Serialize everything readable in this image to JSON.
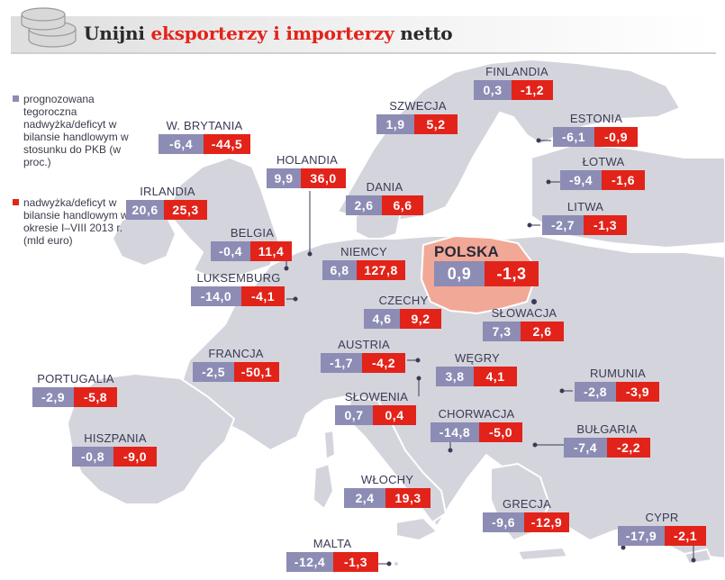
{
  "header": {
    "title_part1": "Unijni ",
    "title_accent": "eksporterzy i importerzy",
    "title_part2": " netto"
  },
  "legend": {
    "item1": "prognozowana tegoroczna nadwyżka/deficyt w bilansie handlowym w stosunku do PKB (w proc.)",
    "item2": "nadwyżka/deficyt w bilansie handlowym w okresie I–VIII 2013 r. (mld euro)"
  },
  "colors": {
    "gdp_share": "#8c8cb4",
    "trade_balance": "#e2231a",
    "poland_highlight": "#f2a896",
    "land": "#d4d4dc",
    "sea": "#ffffff"
  },
  "countries": [
    {
      "name": "FINLANDIA",
      "gdp": "0,3",
      "eur": "-1,2"
    },
    {
      "name": "SZWECJA",
      "gdp": "1,9",
      "eur": "5,2"
    },
    {
      "name": "ESTONIA",
      "gdp": "-6,1",
      "eur": "-0,9"
    },
    {
      "name": "W. BRYTANIA",
      "gdp": "-6,4",
      "eur": "-44,5"
    },
    {
      "name": "HOLANDIA",
      "gdp": "9,9",
      "eur": "36,0"
    },
    {
      "name": "ŁOTWA",
      "gdp": "-9,4",
      "eur": "-1,6"
    },
    {
      "name": "IRLANDIA",
      "gdp": "20,6",
      "eur": "25,3"
    },
    {
      "name": "DANIA",
      "gdp": "2,6",
      "eur": "6,6"
    },
    {
      "name": "LITWA",
      "gdp": "-2,7",
      "eur": "-1,3"
    },
    {
      "name": "BELGIA",
      "gdp": "-0,4",
      "eur": "11,4"
    },
    {
      "name": "NIEMCY",
      "gdp": "6,8",
      "eur": "127,8"
    },
    {
      "name": "POLSKA",
      "gdp": "0,9",
      "eur": "-1,3"
    },
    {
      "name": "LUKSEMBURG",
      "gdp": "-14,0",
      "eur": "-4,1"
    },
    {
      "name": "CZECHY",
      "gdp": "4,6",
      "eur": "9,2"
    },
    {
      "name": "SŁOWACJA",
      "gdp": "7,3",
      "eur": "2,6"
    },
    {
      "name": "FRANCJA",
      "gdp": "-2,5",
      "eur": "-50,1"
    },
    {
      "name": "AUSTRIA",
      "gdp": "-1,7",
      "eur": "-4,2"
    },
    {
      "name": "WĘGRY",
      "gdp": "3,8",
      "eur": "4,1"
    },
    {
      "name": "PORTUGALIA",
      "gdp": "-2,9",
      "eur": "-5,8"
    },
    {
      "name": "RUMUNIA",
      "gdp": "-2,8",
      "eur": "-3,9"
    },
    {
      "name": "SŁOWENIA",
      "gdp": "0,7",
      "eur": "0,4"
    },
    {
      "name": "CHORWACJA",
      "gdp": "-14,8",
      "eur": "-5,0"
    },
    {
      "name": "BUŁGARIA",
      "gdp": "-7,4",
      "eur": "-2,2"
    },
    {
      "name": "HISZPANIA",
      "gdp": "-0,8",
      "eur": "-9,0"
    },
    {
      "name": "WŁOCHY",
      "gdp": "2,4",
      "eur": "19,3"
    },
    {
      "name": "GRECJA",
      "gdp": "-9,6",
      "eur": "-12,9"
    },
    {
      "name": "CYPR",
      "gdp": "-17,9",
      "eur": "-2,1"
    },
    {
      "name": "MALTA",
      "gdp": "-12,4",
      "eur": "-1,3"
    }
  ]
}
